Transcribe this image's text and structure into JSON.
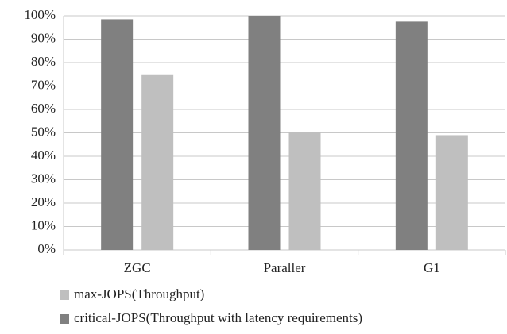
{
  "chart_data": {
    "type": "bar",
    "categories": [
      "ZGC",
      "Paraller",
      "G1"
    ],
    "series": [
      {
        "name": "critical-JOPS(Throughput with latency requirements)",
        "color": "#808080",
        "values": [
          98.5,
          100,
          97.5
        ]
      },
      {
        "name": "max-JOPS(Throughput)",
        "color": "#bfbfbf",
        "values": [
          75,
          50.5,
          49
        ]
      }
    ],
    "ylim": [
      0,
      100
    ],
    "yticks": [
      {
        "value": 0,
        "label": "0%"
      },
      {
        "value": 10,
        "label": "10%"
      },
      {
        "value": 20,
        "label": "20%"
      },
      {
        "value": 30,
        "label": "30%"
      },
      {
        "value": 40,
        "label": "40%"
      },
      {
        "value": 50,
        "label": "50%"
      },
      {
        "value": 60,
        "label": "60%"
      },
      {
        "value": 70,
        "label": "70%"
      },
      {
        "value": 80,
        "label": "80%"
      },
      {
        "value": 90,
        "label": "90%"
      },
      {
        "value": 100,
        "label": "100%"
      }
    ],
    "grid": true
  }
}
